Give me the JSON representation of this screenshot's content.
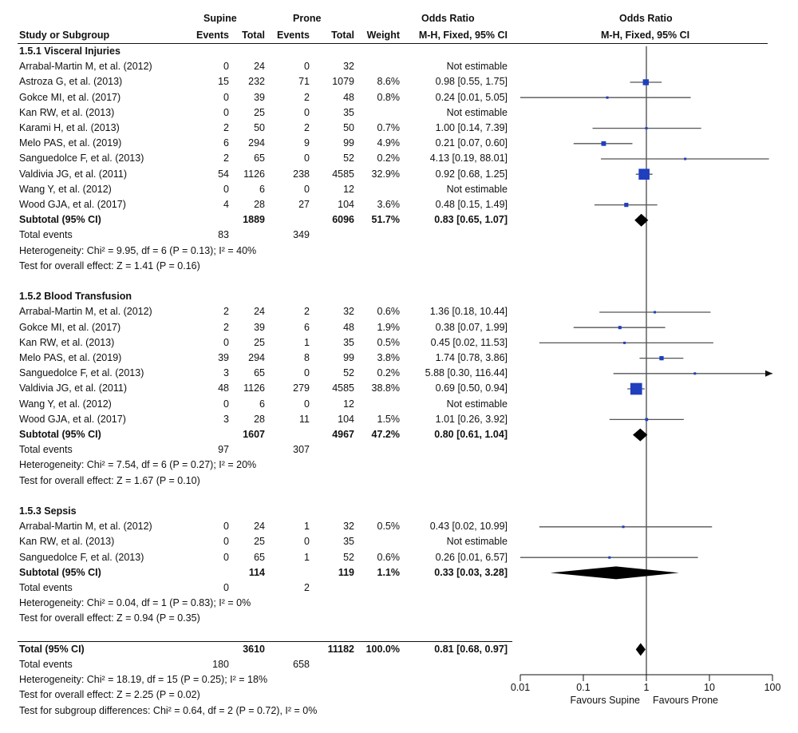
{
  "headers": {
    "supine": "Supine",
    "prone": "Prone",
    "or_left_1": "Odds Ratio",
    "or_left_2": "M-H, Fixed, 95% CI",
    "or_right_1": "Odds Ratio",
    "or_right_2": "M-H, Fixed, 95% CI",
    "study": "Study or Subgroup",
    "events": "Events",
    "total": "Total",
    "weight": "Weight"
  },
  "rows": [
    {
      "kind": "group",
      "label": "1.5.1 Visceral Injuries"
    },
    {
      "kind": "study",
      "label": "Arrabal-Martin M, et al. (2012)",
      "se": "0",
      "st": "24",
      "pe": "0",
      "pt": "32",
      "w": "",
      "ci": "Not estimable"
    },
    {
      "kind": "study",
      "label": "Astroza G, et al. (2013)",
      "se": "15",
      "st": "232",
      "pe": "71",
      "pt": "1079",
      "w": "8.6%",
      "ci": "0.98 [0.55, 1.75]"
    },
    {
      "kind": "study",
      "label": "Gokce MI, et al. (2017)",
      "se": "0",
      "st": "39",
      "pe": "2",
      "pt": "48",
      "w": "0.8%",
      "ci": "0.24 [0.01, 5.05]"
    },
    {
      "kind": "study",
      "label": "Kan RW, et al. (2013)",
      "se": "0",
      "st": "25",
      "pe": "0",
      "pt": "35",
      "w": "",
      "ci": "Not estimable"
    },
    {
      "kind": "study",
      "label": "Karami H, et al. (2013)",
      "se": "2",
      "st": "50",
      "pe": "2",
      "pt": "50",
      "w": "0.7%",
      "ci": "1.00 [0.14, 7.39]"
    },
    {
      "kind": "study",
      "label": "Melo PAS, et al. (2019)",
      "se": "6",
      "st": "294",
      "pe": "9",
      "pt": "99",
      "w": "4.9%",
      "ci": "0.21 [0.07, 0.60]"
    },
    {
      "kind": "study",
      "label": "Sanguedolce F, et al. (2013)",
      "se": "2",
      "st": "65",
      "pe": "0",
      "pt": "52",
      "w": "0.2%",
      "ci": "4.13 [0.19, 88.01]"
    },
    {
      "kind": "study",
      "label": "Valdivia JG, et al. (2011)",
      "se": "54",
      "st": "1126",
      "pe": "238",
      "pt": "4585",
      "w": "32.9%",
      "ci": "0.92 [0.68, 1.25]"
    },
    {
      "kind": "study",
      "label": "Wang Y, et al. (2012)",
      "se": "0",
      "st": "6",
      "pe": "0",
      "pt": "12",
      "w": "",
      "ci": "Not estimable"
    },
    {
      "kind": "study",
      "label": "Wood GJA, et al. (2017)",
      "se": "4",
      "st": "28",
      "pe": "27",
      "pt": "104",
      "w": "3.6%",
      "ci": "0.48 [0.15, 1.49]"
    },
    {
      "kind": "subtotal",
      "label": "Subtotal (95% CI)",
      "se": "",
      "st": "1889",
      "pe": "",
      "pt": "6096",
      "w": "51.7%",
      "ci": "0.83 [0.65, 1.07]"
    },
    {
      "kind": "note",
      "label": "Total events",
      "se": "83",
      "st": "",
      "pe": "349",
      "pt": "",
      "w": "",
      "ci": ""
    },
    {
      "kind": "note",
      "label": "Heterogeneity: Chi² = 9.95, df = 6 (P = 0.13); I² = 40%"
    },
    {
      "kind": "note",
      "label": "Test for overall effect: Z = 1.41 (P = 0.16)"
    },
    {
      "kind": "blank"
    },
    {
      "kind": "group",
      "label": "1.5.2 Blood Transfusion"
    },
    {
      "kind": "study",
      "label": "Arrabal-Martin M, et al. (2012)",
      "se": "2",
      "st": "24",
      "pe": "2",
      "pt": "32",
      "w": "0.6%",
      "ci": "1.36 [0.18, 10.44]"
    },
    {
      "kind": "study",
      "label": "Gokce MI, et al. (2017)",
      "se": "2",
      "st": "39",
      "pe": "6",
      "pt": "48",
      "w": "1.9%",
      "ci": "0.38 [0.07, 1.99]"
    },
    {
      "kind": "study",
      "label": "Kan RW, et al. (2013)",
      "se": "0",
      "st": "25",
      "pe": "1",
      "pt": "35",
      "w": "0.5%",
      "ci": "0.45 [0.02, 11.53]"
    },
    {
      "kind": "study",
      "label": "Melo PAS, et al. (2019)",
      "se": "39",
      "st": "294",
      "pe": "8",
      "pt": "99",
      "w": "3.8%",
      "ci": "1.74 [0.78, 3.86]"
    },
    {
      "kind": "study",
      "label": "Sanguedolce F, et al. (2013)",
      "se": "3",
      "st": "65",
      "pe": "0",
      "pt": "52",
      "w": "0.2%",
      "ci": "5.88 [0.30, 116.44]"
    },
    {
      "kind": "study",
      "label": "Valdivia JG, et al. (2011)",
      "se": "48",
      "st": "1126",
      "pe": "279",
      "pt": "4585",
      "w": "38.8%",
      "ci": "0.69 [0.50, 0.94]"
    },
    {
      "kind": "study",
      "label": "Wang Y, et al. (2012)",
      "se": "0",
      "st": "6",
      "pe": "0",
      "pt": "12",
      "w": "",
      "ci": "Not estimable"
    },
    {
      "kind": "study",
      "label": "Wood GJA, et al. (2017)",
      "se": "3",
      "st": "28",
      "pe": "11",
      "pt": "104",
      "w": "1.5%",
      "ci": "1.01 [0.26, 3.92]"
    },
    {
      "kind": "subtotal",
      "label": "Subtotal (95% CI)",
      "se": "",
      "st": "1607",
      "pe": "",
      "pt": "4967",
      "w": "47.2%",
      "ci": "0.80 [0.61, 1.04]"
    },
    {
      "kind": "note",
      "label": "Total events",
      "se": "97",
      "st": "",
      "pe": "307",
      "pt": "",
      "w": "",
      "ci": ""
    },
    {
      "kind": "note",
      "label": "Heterogeneity: Chi² = 7.54, df = 6 (P = 0.27); I² = 20%"
    },
    {
      "kind": "note",
      "label": "Test for overall effect: Z = 1.67 (P = 0.10)"
    },
    {
      "kind": "blank"
    },
    {
      "kind": "group",
      "label": "1.5.3 Sepsis"
    },
    {
      "kind": "study",
      "label": "Arrabal-Martin M, et al. (2012)",
      "se": "0",
      "st": "24",
      "pe": "1",
      "pt": "32",
      "w": "0.5%",
      "ci": "0.43 [0.02, 10.99]"
    },
    {
      "kind": "study",
      "label": "Kan RW, et al. (2013)",
      "se": "0",
      "st": "25",
      "pe": "0",
      "pt": "35",
      "w": "",
      "ci": "Not estimable"
    },
    {
      "kind": "study",
      "label": "Sanguedolce F, et al. (2013)",
      "se": "0",
      "st": "65",
      "pe": "1",
      "pt": "52",
      "w": "0.6%",
      "ci": "0.26 [0.01, 6.57]"
    },
    {
      "kind": "subtotal",
      "label": "Subtotal (95% CI)",
      "se": "",
      "st": "114",
      "pe": "",
      "pt": "119",
      "w": "1.1%",
      "ci": "0.33 [0.03, 3.28]"
    },
    {
      "kind": "note",
      "label": "Total events",
      "se": "0",
      "st": "",
      "pe": "2",
      "pt": "",
      "w": "",
      "ci": ""
    },
    {
      "kind": "note",
      "label": "Heterogeneity: Chi² = 0.04, df = 1 (P = 0.83); I² = 0%"
    },
    {
      "kind": "note",
      "label": "Test for overall effect: Z = 0.94 (P = 0.35)"
    },
    {
      "kind": "blank"
    },
    {
      "kind": "total",
      "label": "Total (95% CI)",
      "se": "",
      "st": "3610",
      "pe": "",
      "pt": "11182",
      "w": "100.0%",
      "ci": "0.81 [0.68, 0.97]"
    },
    {
      "kind": "note",
      "label": "Total events",
      "se": "180",
      "st": "",
      "pe": "658",
      "pt": "",
      "w": "",
      "ci": ""
    },
    {
      "kind": "note",
      "label": "Heterogeneity: Chi² = 18.19, df = 15 (P = 0.25); I² = 18%"
    },
    {
      "kind": "note",
      "label": "Test for overall effect: Z = 2.25 (P = 0.02)"
    },
    {
      "kind": "note",
      "label": "Test for subgroup differences: Chi² = 0.64, df = 2 (P = 0.72), I² = 0%"
    }
  ],
  "chart_data": {
    "type": "forest",
    "x_scale": "log",
    "xlim": [
      0.01,
      100
    ],
    "ticks": [
      "0.01",
      "0.1",
      "1",
      "10",
      "100"
    ],
    "favours_left": "Favours Supine",
    "favours_right": "Favours Prone",
    "studies": [
      {
        "row": 2,
        "or": 0.98,
        "lo": 0.55,
        "hi": 1.75,
        "weight": 8.6
      },
      {
        "row": 3,
        "or": 0.24,
        "lo": 0.01,
        "hi": 5.05,
        "weight": 0.8
      },
      {
        "row": 5,
        "or": 1.0,
        "lo": 0.14,
        "hi": 7.39,
        "weight": 0.7
      },
      {
        "row": 6,
        "or": 0.21,
        "lo": 0.07,
        "hi": 0.6,
        "weight": 4.9
      },
      {
        "row": 7,
        "or": 4.13,
        "lo": 0.19,
        "hi": 88.01,
        "weight": 0.2
      },
      {
        "row": 8,
        "or": 0.92,
        "lo": 0.68,
        "hi": 1.25,
        "weight": 32.9
      },
      {
        "row": 10,
        "or": 0.48,
        "lo": 0.15,
        "hi": 1.49,
        "weight": 3.6
      },
      {
        "row": 17,
        "or": 1.36,
        "lo": 0.18,
        "hi": 10.44,
        "weight": 0.6
      },
      {
        "row": 18,
        "or": 0.38,
        "lo": 0.07,
        "hi": 1.99,
        "weight": 1.9
      },
      {
        "row": 19,
        "or": 0.45,
        "lo": 0.02,
        "hi": 11.53,
        "weight": 0.5
      },
      {
        "row": 20,
        "or": 1.74,
        "lo": 0.78,
        "hi": 3.86,
        "weight": 3.8
      },
      {
        "row": 21,
        "or": 5.88,
        "lo": 0.3,
        "hi": 116.44,
        "weight": 0.2
      },
      {
        "row": 22,
        "or": 0.69,
        "lo": 0.5,
        "hi": 0.94,
        "weight": 38.8
      },
      {
        "row": 24,
        "or": 1.01,
        "lo": 0.26,
        "hi": 3.92,
        "weight": 1.5
      },
      {
        "row": 31,
        "or": 0.43,
        "lo": 0.02,
        "hi": 10.99,
        "weight": 0.5
      },
      {
        "row": 33,
        "or": 0.26,
        "lo": 0.01,
        "hi": 6.57,
        "weight": 0.6
      }
    ],
    "diamonds": [
      {
        "row": 11,
        "or": 0.83,
        "lo": 0.65,
        "hi": 1.07
      },
      {
        "row": 25,
        "or": 0.8,
        "lo": 0.61,
        "hi": 1.04
      },
      {
        "row": 34,
        "or": 0.33,
        "lo": 0.03,
        "hi": 3.28
      },
      {
        "row": 39,
        "or": 0.81,
        "lo": 0.68,
        "hi": 0.97
      }
    ]
  }
}
